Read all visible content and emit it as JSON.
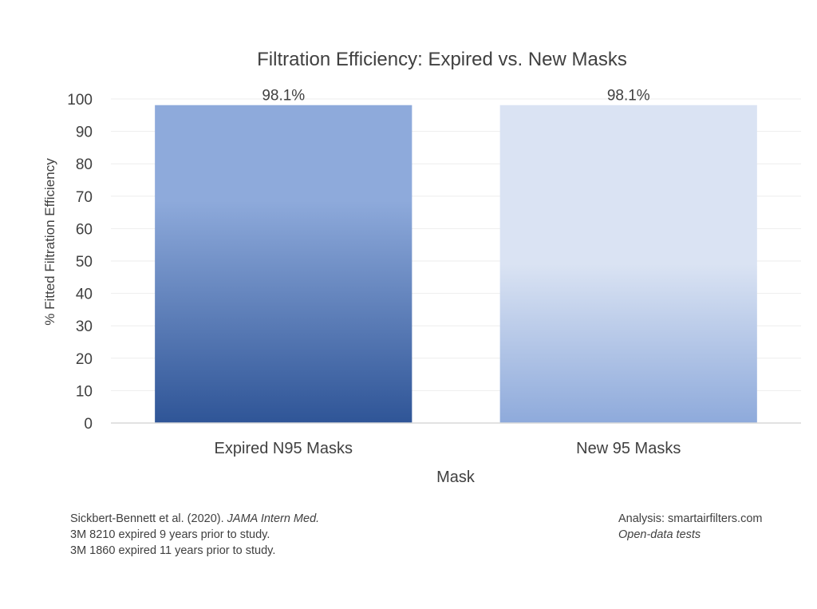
{
  "chart_data": {
    "type": "bar",
    "title": "Filtration Efficiency: Expired vs. New Masks",
    "xlabel": "Mask",
    "ylabel": "% Fitted Filtration Efficiency",
    "categories": [
      "Expired N95 Masks",
      "New 95 Masks"
    ],
    "values": [
      98.1,
      98.1
    ],
    "data_labels": [
      "98.1%",
      "98.1%"
    ],
    "ylim": [
      0,
      100
    ],
    "yticks": [
      "0",
      "10",
      "20",
      "30",
      "40",
      "50",
      "60",
      "70",
      "80",
      "90",
      "100"
    ],
    "grid": true,
    "legend": "none",
    "colors": {
      "expired_top": "#8eaadb",
      "expired_bottom": "#2f5597",
      "new_top": "#dae3f3",
      "new_bottom": "#8eaadb"
    }
  },
  "footer": {
    "citation_authors": "Sickbert-Bennett et al. (2020). ",
    "citation_journal": "JAMA Intern Med.",
    "note_1": "3M 8210 expired 9 years prior to study.",
    "note_2": "3M 1860 expired 11 years prior to study.",
    "analysis": "Analysis: smartairfilters.com",
    "tests": "Open-data tests"
  }
}
